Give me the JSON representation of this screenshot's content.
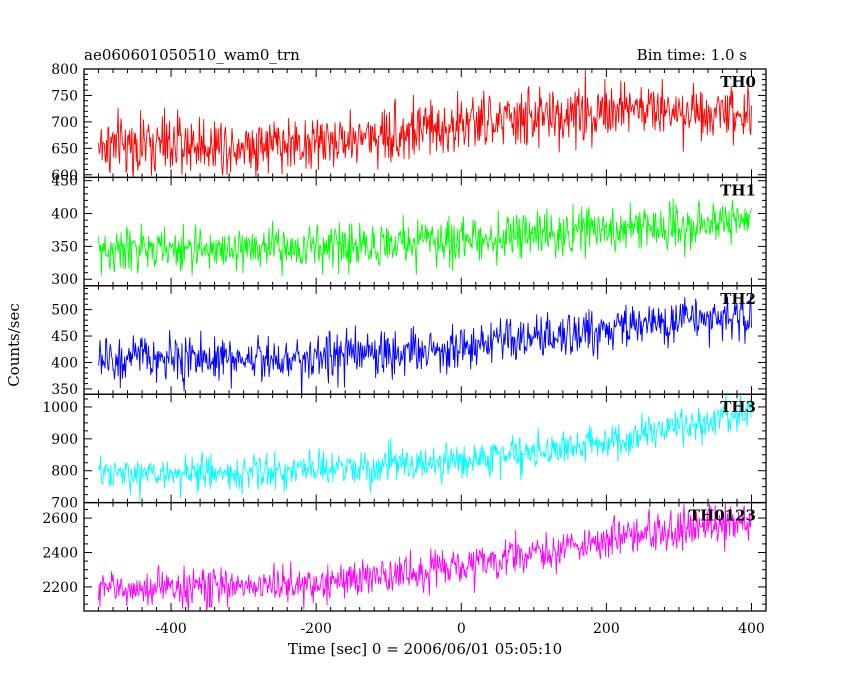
{
  "chart_data": {
    "type": "line",
    "title_left": "ae060601050510_wam0_trn",
    "title_right": "Bin time: 1.0 s",
    "xlabel": "Time [sec] 0 = 2006/06/01 05:05:10",
    "ylabel": "Counts/sec",
    "xlim": [
      -520,
      420
    ],
    "x_ticks": [
      -400,
      -200,
      0,
      200,
      400
    ],
    "x_data_range": [
      -500,
      400
    ],
    "bin_time": 1.0,
    "panels": [
      {
        "name": "TH0",
        "color": "#ff0000",
        "ylim": [
          595,
          800
        ],
        "y_ticks": [
          600,
          650,
          700,
          750,
          800
        ],
        "trend": {
          "x": [
            -500,
            -200,
            0,
            170,
            180,
            400
          ],
          "y": [
            655,
            660,
            695,
            715,
            725,
            720
          ]
        },
        "noise": 28
      },
      {
        "name": "TH1",
        "color": "#00ff00",
        "ylim": [
          290,
          455
        ],
        "y_ticks": [
          300,
          350,
          400,
          450
        ],
        "trend": {
          "x": [
            -500,
            -200,
            0,
            200,
            400
          ],
          "y": [
            343,
            348,
            360,
            375,
            390
          ]
        },
        "noise": 17
      },
      {
        "name": "TH2",
        "color": "#0000ff",
        "ylim": [
          340,
          545
        ],
        "y_ticks": [
          350,
          400,
          450,
          500
        ],
        "trend": {
          "x": [
            -500,
            -200,
            0,
            150,
            200,
            400
          ],
          "y": [
            405,
            410,
            428,
            450,
            465,
            490
          ]
        },
        "noise": 22
      },
      {
        "name": "TH3",
        "color": "#00ffff",
        "ylim": [
          700,
          1040
        ],
        "y_ticks": [
          700,
          800,
          900,
          1000
        ],
        "trend": {
          "x": [
            -500,
            -200,
            0,
            200,
            400
          ],
          "y": [
            785,
            800,
            830,
            890,
            980
          ]
        },
        "noise": 28
      },
      {
        "name": "TH0123",
        "color": "#ff00ff",
        "ylim": [
          2060,
          2690
        ],
        "y_ticks": [
          2200,
          2400,
          2600
        ],
        "trend": {
          "x": [
            -500,
            -200,
            0,
            200,
            400
          ],
          "y": [
            2185,
            2215,
            2320,
            2470,
            2590
          ]
        },
        "noise": 55
      }
    ]
  }
}
